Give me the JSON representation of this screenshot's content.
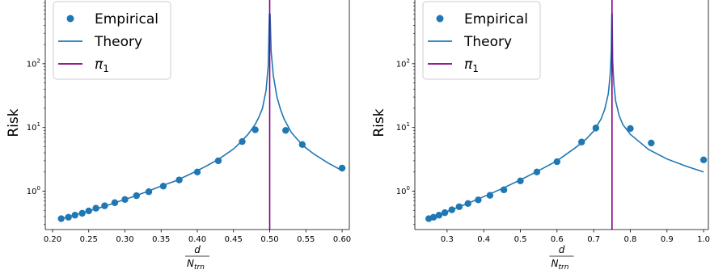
{
  "chart_data": [
    {
      "type": "line",
      "panel": "left",
      "xlabel_numerator": "d",
      "xlabel_denominator": "N",
      "xlabel_denominator_sub": "trn",
      "ylabel": "Risk",
      "yscale": "log",
      "xlim": [
        0.19,
        0.61
      ],
      "ylim": [
        0.25,
        1000
      ],
      "xticks": [
        0.2,
        0.25,
        0.3,
        0.35,
        0.4,
        0.45,
        0.5,
        0.55,
        0.6
      ],
      "xtick_labels": [
        "0.20",
        "0.25",
        "0.30",
        "0.35",
        "0.40",
        "0.45",
        "0.50",
        "0.55",
        "0.60"
      ],
      "yticks": [
        1,
        10,
        100
      ],
      "ytick_labels": [
        {
          "base": "10",
          "exp": "0"
        },
        {
          "base": "10",
          "exp": "1"
        },
        {
          "base": "10",
          "exp": "2"
        }
      ],
      "legend": {
        "position": "upper-left",
        "entries": [
          {
            "label": "Empirical",
            "marker": "circle",
            "color": "#1f77b4"
          },
          {
            "label": "Theory",
            "marker": "line",
            "color": "#1f77b4"
          },
          {
            "label": "π",
            "label_sub": "1",
            "marker": "line",
            "color": "#800080"
          }
        ]
      },
      "series": [
        {
          "name": "Empirical",
          "kind": "scatter",
          "color": "#1f77b4",
          "x": [
            0.212,
            0.222,
            0.231,
            0.241,
            0.25,
            0.26,
            0.272,
            0.286,
            0.3,
            0.316,
            0.333,
            0.353,
            0.375,
            0.4,
            0.429,
            0.462,
            0.48,
            0.522,
            0.545,
            0.6
          ],
          "y": [
            0.37,
            0.39,
            0.42,
            0.45,
            0.49,
            0.54,
            0.59,
            0.66,
            0.74,
            0.85,
            0.98,
            1.2,
            1.5,
            2.0,
            3.0,
            6.0,
            9.2,
            9.0,
            5.4,
            2.3
          ]
        },
        {
          "name": "Theory",
          "kind": "line",
          "color": "#1f77b4",
          "x": [
            0.212,
            0.23,
            0.25,
            0.27,
            0.29,
            0.31,
            0.33,
            0.35,
            0.37,
            0.39,
            0.41,
            0.43,
            0.45,
            0.46,
            0.47,
            0.48,
            0.485,
            0.49,
            0.495,
            0.498,
            0.4995,
            0.5005,
            0.502,
            0.505,
            0.51,
            0.515,
            0.52,
            0.53,
            0.545,
            0.56,
            0.58,
            0.6
          ],
          "y": [
            0.37,
            0.42,
            0.49,
            0.57,
            0.68,
            0.81,
            0.98,
            1.2,
            1.45,
            1.85,
            2.4,
            3.2,
            4.6,
            5.9,
            7.8,
            11.2,
            14.5,
            20,
            38,
            92,
            600,
            600,
            155,
            65,
            30,
            19,
            13.5,
            8.3,
            5.3,
            3.9,
            2.8,
            2.1
          ]
        }
      ],
      "vline": {
        "name": "π1",
        "x": 0.5,
        "color": "#800080"
      }
    },
    {
      "type": "line",
      "panel": "right",
      "xlabel_numerator": "d",
      "xlabel_denominator": "N",
      "xlabel_denominator_sub": "trn",
      "ylabel": "Risk",
      "yscale": "log",
      "xlim": [
        0.212,
        1.013
      ],
      "ylim": [
        0.25,
        1000
      ],
      "xticks": [
        0.3,
        0.4,
        0.5,
        0.6,
        0.7,
        0.8,
        0.9,
        1.0
      ],
      "xtick_labels": [
        "0.3",
        "0.4",
        "0.5",
        "0.6",
        "0.7",
        "0.8",
        "0.9",
        "1.0"
      ],
      "yticks": [
        1,
        10,
        100
      ],
      "ytick_labels": [
        {
          "base": "10",
          "exp": "0"
        },
        {
          "base": "10",
          "exp": "1"
        },
        {
          "base": "10",
          "exp": "2"
        }
      ],
      "legend": {
        "position": "upper-left",
        "entries": [
          {
            "label": "Empirical",
            "marker": "circle",
            "color": "#1f77b4"
          },
          {
            "label": "Theory",
            "marker": "line",
            "color": "#1f77b4"
          },
          {
            "label": "π",
            "label_sub": "1",
            "marker": "line",
            "color": "#800080"
          }
        ]
      },
      "series": [
        {
          "name": "Empirical",
          "kind": "scatter",
          "color": "#1f77b4",
          "x": [
            0.25,
            0.263,
            0.278,
            0.294,
            0.313,
            0.333,
            0.357,
            0.385,
            0.417,
            0.455,
            0.5,
            0.545,
            0.6,
            0.667,
            0.706,
            0.8,
            0.857,
            1.0
          ],
          "y": [
            0.37,
            0.39,
            0.42,
            0.46,
            0.51,
            0.57,
            0.64,
            0.73,
            0.86,
            1.05,
            1.45,
            2.0,
            2.9,
            5.9,
            9.8,
            9.6,
            5.7,
            3.1
          ]
        },
        {
          "name": "Theory",
          "kind": "line",
          "color": "#1f77b4",
          "x": [
            0.25,
            0.3,
            0.35,
            0.4,
            0.45,
            0.5,
            0.55,
            0.6,
            0.65,
            0.68,
            0.7,
            0.72,
            0.73,
            0.74,
            0.745,
            0.748,
            0.7495,
            0.7505,
            0.752,
            0.755,
            0.76,
            0.77,
            0.78,
            0.8,
            0.85,
            0.9,
            0.95,
            1.0
          ],
          "y": [
            0.37,
            0.48,
            0.62,
            0.82,
            1.1,
            1.5,
            2.1,
            3.0,
            4.8,
            6.6,
            8.8,
            13.5,
            19,
            34,
            66,
            155,
            600,
            600,
            110,
            48,
            26,
            15,
            11,
            7.8,
            4.5,
            3.2,
            2.5,
            2.0
          ]
        }
      ],
      "vline": {
        "name": "π1",
        "x": 0.75,
        "color": "#800080"
      }
    }
  ]
}
